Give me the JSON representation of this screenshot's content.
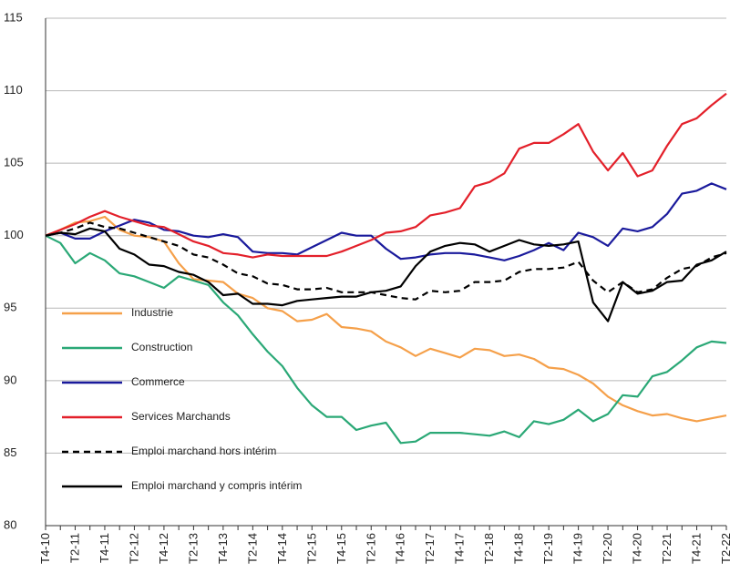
{
  "chart_data": {
    "type": "line",
    "categories": [
      "T4-10",
      null,
      "T2-11",
      null,
      "T4-11",
      null,
      "T2-12",
      null,
      "T4-12",
      null,
      "T2-13",
      null,
      "T4-13",
      null,
      "T2-14",
      null,
      "T4-14",
      null,
      "T2-15",
      null,
      "T4-15",
      null,
      "T2-16",
      null,
      "T4-16",
      null,
      "T2-17",
      null,
      "T4-17",
      null,
      "T2-18",
      null,
      "T4-18",
      null,
      "T2-19",
      null,
      "T4-19",
      null,
      "T2-20",
      null,
      "T4-20",
      null,
      "T2-21",
      null,
      "T4-21",
      null,
      "T2-22"
    ],
    "series": [
      {
        "name": "Industrie",
        "color": "#f5a04a",
        "dashed": false,
        "values": [
          100,
          100.4,
          100.9,
          101.0,
          101.3,
          100.4,
          100.0,
          99.9,
          99.6,
          98.1,
          97.0,
          96.9,
          96.8,
          96.0,
          95.7,
          95.0,
          94.8,
          94.1,
          94.2,
          94.6,
          93.7,
          93.6,
          93.4,
          92.7,
          92.3,
          91.7,
          92.2,
          91.9,
          91.6,
          92.2,
          92.1,
          91.7,
          91.8,
          91.5,
          90.9,
          90.8,
          90.4,
          89.8,
          88.9,
          88.3,
          87.9,
          87.6,
          87.7,
          87.4,
          87.2,
          87.4,
          87.6
        ]
      },
      {
        "name": "Construction",
        "color": "#2aa876",
        "dashed": false,
        "values": [
          100,
          99.5,
          98.1,
          98.8,
          98.3,
          97.4,
          97.2,
          96.8,
          96.4,
          97.2,
          96.9,
          96.6,
          95.4,
          94.5,
          93.2,
          92.0,
          91.0,
          89.5,
          88.3,
          87.5,
          87.5,
          86.6,
          86.9,
          87.1,
          85.7,
          85.8,
          86.4,
          86.4,
          86.4,
          86.3,
          86.2,
          86.5,
          86.1,
          87.2,
          87.0,
          87.3,
          88.0,
          87.2,
          87.7,
          89.0,
          88.9,
          90.3,
          90.6,
          91.4,
          92.3,
          92.7,
          92.6
        ]
      },
      {
        "name": "Commerce",
        "color": "#1a1a9c",
        "dashed": false,
        "values": [
          100,
          100.2,
          99.8,
          99.8,
          100.3,
          100.7,
          101.1,
          100.9,
          100.4,
          100.3,
          100.0,
          99.9,
          100.1,
          99.9,
          98.9,
          98.8,
          98.8,
          98.7,
          99.2,
          99.7,
          100.2,
          100.0,
          100.0,
          99.1,
          98.4,
          98.5,
          98.7,
          98.8,
          98.8,
          98.7,
          98.5,
          98.3,
          98.6,
          99.0,
          99.5,
          99.0,
          100.2,
          99.9,
          99.3,
          100.5,
          100.3,
          100.6,
          101.5,
          102.9,
          103.1,
          103.6,
          103.2
        ]
      },
      {
        "name": "Services Marchands",
        "color": "#e3202a",
        "dashed": false,
        "values": [
          100,
          100.4,
          100.8,
          101.3,
          101.7,
          101.3,
          101.0,
          100.7,
          100.6,
          100.1,
          99.6,
          99.3,
          98.8,
          98.7,
          98.5,
          98.7,
          98.6,
          98.6,
          98.6,
          98.6,
          98.9,
          99.3,
          99.7,
          100.2,
          100.3,
          100.6,
          101.4,
          101.6,
          101.9,
          103.4,
          103.7,
          104.3,
          106.0,
          106.4,
          106.4,
          107.0,
          107.7,
          105.8,
          104.5,
          105.7,
          104.1,
          104.5,
          106.2,
          107.7,
          108.1,
          109.0,
          109.8
        ]
      },
      {
        "name": "Emploi marchand hors intérim",
        "color": "#000000",
        "dashed": true,
        "values": [
          100,
          100.2,
          100.5,
          100.9,
          100.6,
          100.5,
          100.2,
          99.9,
          99.6,
          99.3,
          98.7,
          98.5,
          98.0,
          97.4,
          97.2,
          96.7,
          96.6,
          96.3,
          96.3,
          96.4,
          96.1,
          96.1,
          96.1,
          95.9,
          95.7,
          95.6,
          96.2,
          96.1,
          96.2,
          96.8,
          96.8,
          96.9,
          97.5,
          97.7,
          97.7,
          97.8,
          98.2,
          96.9,
          96.1,
          96.8,
          96.1,
          96.3,
          97.1,
          97.7,
          97.9,
          98.5,
          98.8
        ]
      },
      {
        "name": "Emploi marchand y compris intérim",
        "color": "#000000",
        "dashed": false,
        "values": [
          100,
          100.2,
          100.1,
          100.5,
          100.3,
          99.1,
          98.7,
          98.0,
          97.9,
          97.5,
          97.3,
          96.8,
          95.9,
          96.0,
          95.3,
          95.3,
          95.2,
          95.5,
          95.6,
          95.7,
          95.8,
          95.8,
          96.1,
          96.2,
          96.5,
          97.9,
          98.9,
          99.3,
          99.5,
          99.4,
          98.9,
          99.3,
          99.7,
          99.4,
          99.3,
          99.4,
          99.6,
          95.4,
          94.1,
          96.8,
          96.0,
          96.2,
          96.8,
          96.9,
          98.0,
          98.3,
          98.9
        ]
      }
    ],
    "ylim": [
      80,
      115
    ],
    "yticks": [
      80,
      85,
      90,
      95,
      100,
      105,
      110,
      115
    ],
    "grid": true
  }
}
